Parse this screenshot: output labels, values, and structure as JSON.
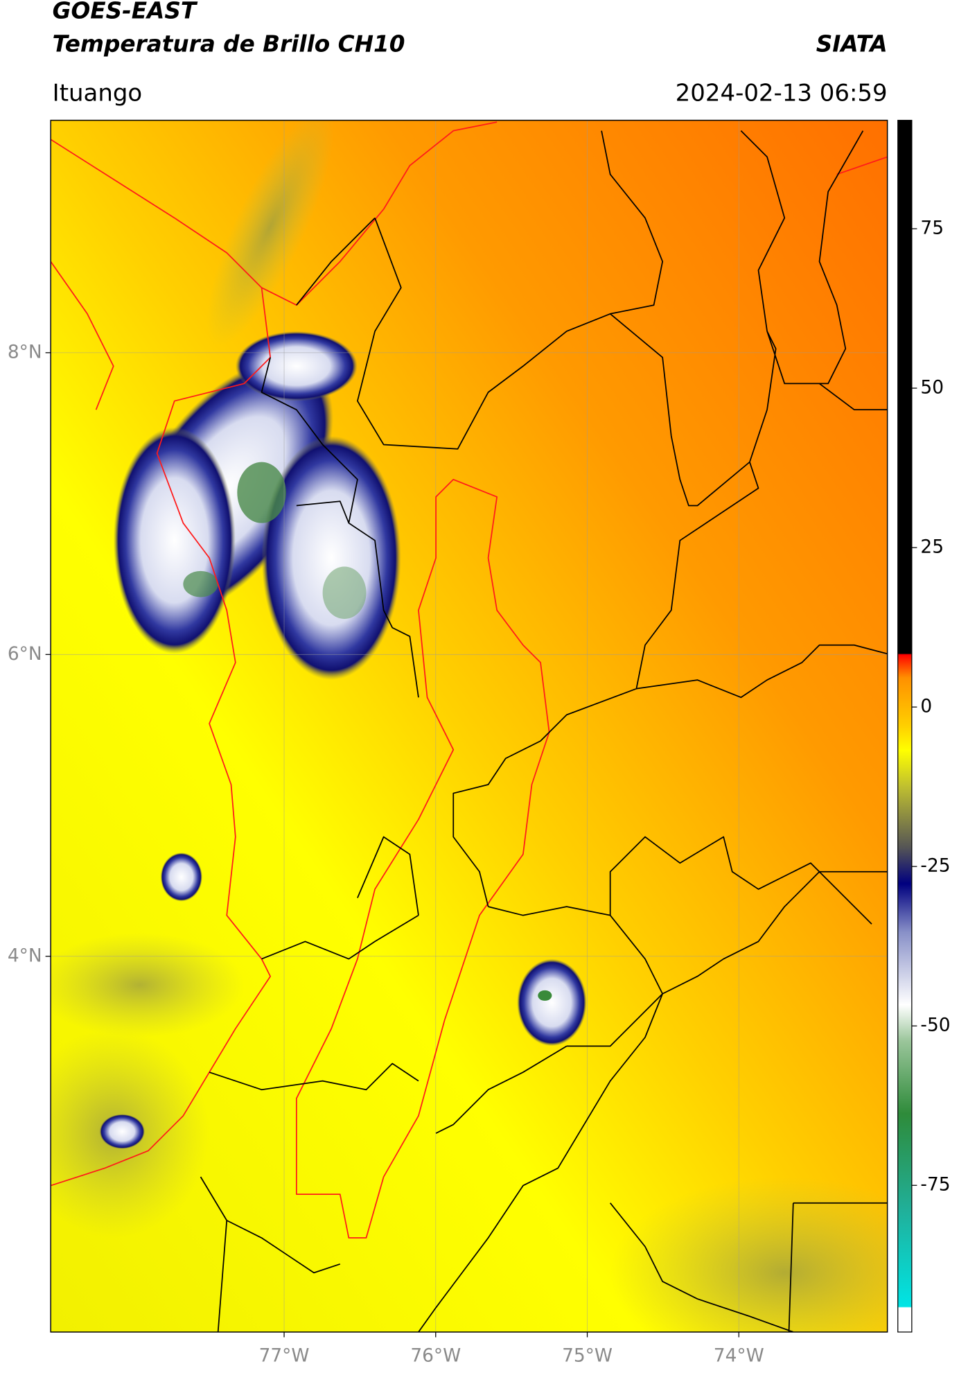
{
  "header": {
    "title": "GOES-EAST",
    "subtitle": "Temperatura de Brillo CH10",
    "brand": "SIATA",
    "location": "Ituango",
    "datetime": "2024-02-13 06:59"
  },
  "map": {
    "xlim": [
      -78.54,
      -73.02
    ],
    "ylim": [
      1.51,
      9.54
    ],
    "xticks": [
      {
        "value": -77,
        "label": "77°W"
      },
      {
        "value": -76,
        "label": "76°W"
      },
      {
        "value": -75,
        "label": "75°W"
      },
      {
        "value": -74,
        "label": "74°W"
      }
    ],
    "yticks": [
      {
        "value": 8,
        "label": "8°N"
      },
      {
        "value": 6,
        "label": "6°N"
      },
      {
        "value": 4,
        "label": "4°N"
      }
    ],
    "grid": true
  },
  "colorbar": {
    "lim": [
      -98,
      92
    ],
    "ticks": [
      75,
      50,
      25,
      0,
      -25,
      -50,
      -75
    ]
  }
}
